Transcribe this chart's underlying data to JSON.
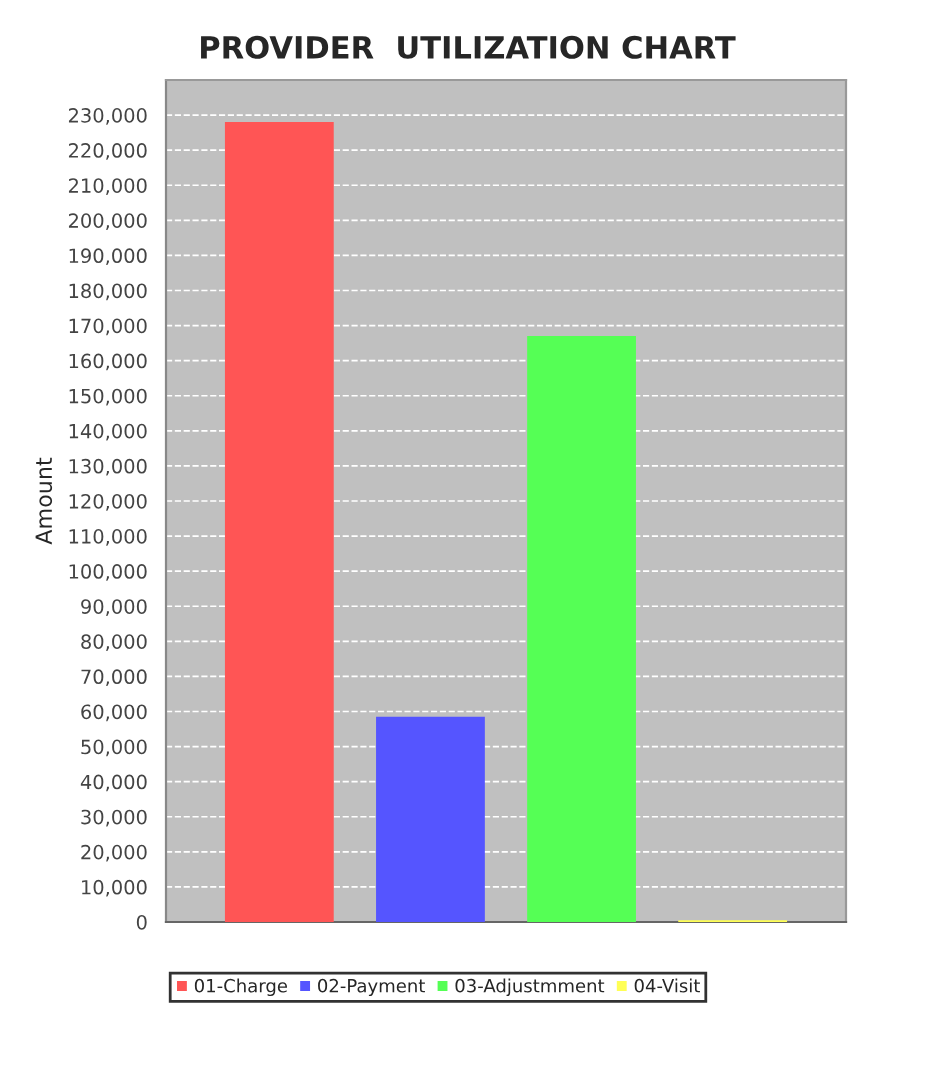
{
  "chart_data": {
    "type": "bar",
    "title": "PROVIDER  UTILIZATION CHART",
    "ylabel": "Amount",
    "categories": [
      null
    ],
    "series": [
      {
        "name": "01-Charge",
        "color": "#ff5555",
        "values": [
          228000
        ]
      },
      {
        "name": "02-Payment",
        "color": "#5555ff",
        "values": [
          58500
        ]
      },
      {
        "name": "03-Adjustmment",
        "color": "#55ff55",
        "values": [
          167000
        ]
      },
      {
        "name": "04-Visit",
        "color": "#ffff55",
        "values": [
          500
        ]
      }
    ],
    "ylim": [
      0,
      240000
    ],
    "yticks": [
      {
        "value": 0,
        "label": "0"
      },
      {
        "value": 10000,
        "label": "10,000"
      },
      {
        "value": 20000,
        "label": "20,000"
      },
      {
        "value": 30000,
        "label": "30,000"
      },
      {
        "value": 40000,
        "label": "40,000"
      },
      {
        "value": 50000,
        "label": "50,000"
      },
      {
        "value": 60000,
        "label": "60,000"
      },
      {
        "value": 70000,
        "label": "70,000"
      },
      {
        "value": 80000,
        "label": "80,000"
      },
      {
        "value": 90000,
        "label": "90,000"
      },
      {
        "value": 100000,
        "label": "100,000"
      },
      {
        "value": 110000,
        "label": "110,000"
      },
      {
        "value": 120000,
        "label": "120,000"
      },
      {
        "value": 130000,
        "label": "130,000"
      },
      {
        "value": 140000,
        "label": "140,000"
      },
      {
        "value": 150000,
        "label": "150,000"
      },
      {
        "value": 160000,
        "label": "160,000"
      },
      {
        "value": 170000,
        "label": "170,000"
      },
      {
        "value": 180000,
        "label": "180,000"
      },
      {
        "value": 190000,
        "label": "190,000"
      },
      {
        "value": 200000,
        "label": "200,000"
      },
      {
        "value": 210000,
        "label": "210,000"
      },
      {
        "value": 220000,
        "label": "220,000"
      },
      {
        "value": 230000,
        "label": "230,000"
      }
    ],
    "grid": "y",
    "legend": "bottom"
  }
}
